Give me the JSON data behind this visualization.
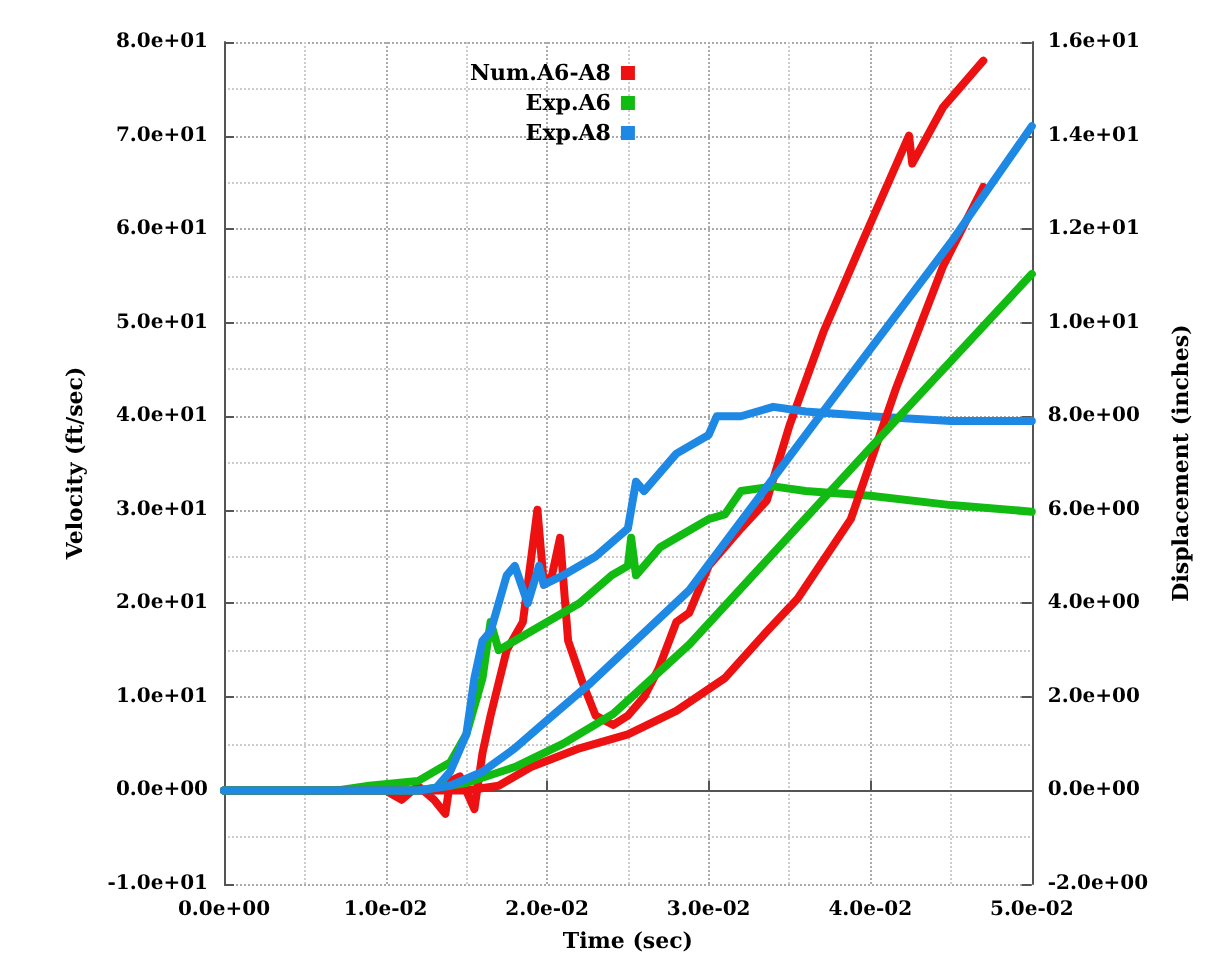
{
  "chart_data": {
    "type": "line",
    "xlabel": "Time (sec)",
    "ylabel": "Velocity (ft/sec)",
    "y2label": "Displacement (inches)",
    "xlim": [
      0,
      0.05
    ],
    "xticks": [
      {
        "value": 0,
        "label": "0.0e+00"
      },
      {
        "value": 0.01,
        "label": "1.0e-02"
      },
      {
        "value": 0.02,
        "label": "2.0e-02"
      },
      {
        "value": 0.03,
        "label": "3.0e-02"
      },
      {
        "value": 0.04,
        "label": "4.0e-02"
      },
      {
        "value": 0.05,
        "label": "5.0e-02"
      }
    ],
    "ylim": [
      -10,
      80
    ],
    "yticks": [
      {
        "value": -10,
        "label": "-1.0e+01"
      },
      {
        "value": 0,
        "label": "0.0e+00"
      },
      {
        "value": 10,
        "label": "1.0e+01"
      },
      {
        "value": 20,
        "label": "2.0e+01"
      },
      {
        "value": 30,
        "label": "3.0e+01"
      },
      {
        "value": 40,
        "label": "4.0e+01"
      },
      {
        "value": 50,
        "label": "5.0e+01"
      },
      {
        "value": 60,
        "label": "6.0e+01"
      },
      {
        "value": 70,
        "label": "7.0e+01"
      },
      {
        "value": 80,
        "label": "8.0e+01"
      }
    ],
    "y2lim": [
      -2,
      16
    ],
    "y2ticks": [
      {
        "value": -2,
        "label": "-2.0e+00"
      },
      {
        "value": 0,
        "label": "0.0e+00"
      },
      {
        "value": 2,
        "label": "2.0e+00"
      },
      {
        "value": 4,
        "label": "4.0e+00"
      },
      {
        "value": 6,
        "label": "6.0e+00"
      },
      {
        "value": 8,
        "label": "8.0e+00"
      },
      {
        "value": 10,
        "label": "1.0e+01"
      },
      {
        "value": 12,
        "label": "1.2e+01"
      },
      {
        "value": 14,
        "label": "1.4e+01"
      },
      {
        "value": 16,
        "label": "1.6e+01"
      }
    ],
    "grid": true,
    "legend": "top",
    "marker": "none",
    "series": [
      {
        "name": "Num.A6-A8",
        "color": "#ee1111",
        "x": [
          0,
          0.01,
          0.011,
          0.012,
          0.013,
          0.0137,
          0.014,
          0.0146,
          0.0155,
          0.016,
          0.0165,
          0.0175,
          0.0185,
          0.0194,
          0.0198,
          0.0203,
          0.0208,
          0.0213,
          0.0222,
          0.023,
          0.0241,
          0.025,
          0.026,
          0.0269,
          0.028,
          0.0288,
          0.03,
          0.032,
          0.0336,
          0.035,
          0.0371,
          0.0396,
          0.0424,
          0.0426,
          0.0445,
          0.047
        ],
        "values": [
          0,
          0,
          -1,
          0.5,
          -1,
          -2.5,
          1,
          1.5,
          -2,
          4,
          8,
          15,
          18,
          30,
          22,
          23,
          27,
          16,
          11.5,
          8,
          7,
          8,
          10,
          13,
          18,
          19,
          24,
          28,
          31,
          39,
          49,
          59,
          70,
          67,
          73,
          78
        ]
      },
      {
        "name": "Exp.A6",
        "color": "#11bb11",
        "x": [
          0,
          0.007,
          0.009,
          0.012,
          0.014,
          0.015,
          0.016,
          0.0165,
          0.017,
          0.018,
          0.02,
          0.022,
          0.024,
          0.025,
          0.0252,
          0.0255,
          0.027,
          0.029,
          0.03,
          0.031,
          0.032,
          0.034,
          0.036,
          0.04,
          0.045,
          0.05
        ],
        "values": [
          0,
          0,
          0.5,
          1,
          3,
          6,
          12,
          18,
          15,
          16,
          18,
          20,
          23,
          24,
          27,
          23,
          26,
          28,
          29,
          29.5,
          32,
          32.5,
          32,
          31.5,
          30.5,
          29.8
        ]
      },
      {
        "name": "Exp.A8",
        "color": "#1e88e5",
        "x": [
          0,
          0.013,
          0.014,
          0.015,
          0.0155,
          0.016,
          0.0165,
          0.0175,
          0.018,
          0.0188,
          0.0195,
          0.0198,
          0.021,
          0.023,
          0.025,
          0.0255,
          0.026,
          0.028,
          0.03,
          0.0305,
          0.032,
          0.034,
          0.036,
          0.04,
          0.045,
          0.05
        ],
        "values": [
          0,
          0,
          2,
          6,
          12,
          16,
          17,
          23,
          24,
          20,
          24,
          22,
          23,
          25,
          28,
          33,
          32,
          36,
          38,
          40,
          40,
          41,
          40.5,
          40,
          39.5,
          39.5
        ]
      },
      {
        "color": "#ee1111",
        "axis": "y2",
        "x": [
          0,
          0.015,
          0.017,
          0.019,
          0.022,
          0.025,
          0.028,
          0.031,
          0.0336,
          0.0355,
          0.0388,
          0.0416,
          0.0445,
          0.047
        ],
        "values": [
          0,
          0,
          0.1,
          0.5,
          0.9,
          1.2,
          1.7,
          2.4,
          3.4,
          4.1,
          5.8,
          8.6,
          11.2,
          12.9
        ]
      },
      {
        "color": "#11bb11",
        "axis": "y2",
        "x": [
          0,
          0.012,
          0.015,
          0.018,
          0.021,
          0.0241,
          0.0288,
          0.0336,
          0.0416,
          0.05
        ],
        "values": [
          0,
          0,
          0.16,
          0.5,
          1,
          1.64,
          3.12,
          4.92,
          7.92,
          11.04
        ]
      },
      {
        "color": "#1e88e5",
        "axis": "y2",
        "x": [
          0,
          0.012,
          0.014,
          0.016,
          0.018,
          0.02,
          0.0227,
          0.0288,
          0.0367,
          0.045,
          0.05
        ],
        "values": [
          0,
          0,
          0.1,
          0.4,
          0.9,
          1.5,
          2.3,
          4.28,
          7.92,
          11.72,
          14.2
        ]
      }
    ]
  }
}
